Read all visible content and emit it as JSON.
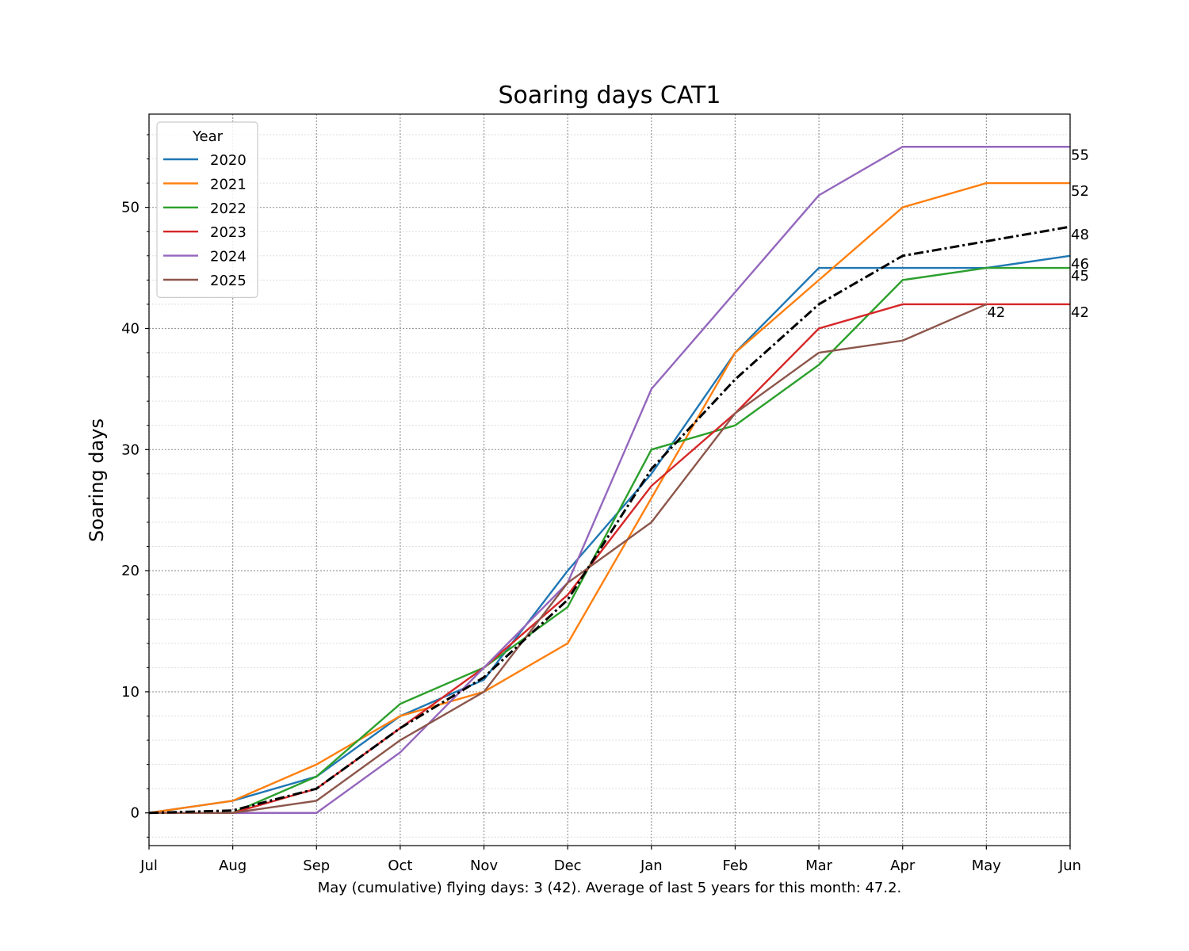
{
  "chart_data": {
    "type": "line",
    "title": "Soaring days CAT1",
    "ylabel": "Soaring days",
    "footnote": "May (cumulative) flying days:  3 (42). Average of last 5 years for this month: 47.2.",
    "legend_title": "Year",
    "legend": "upper left",
    "grid": true,
    "categories": [
      "Jul",
      "Aug",
      "Sep",
      "Oct",
      "Nov",
      "Dec",
      "Jan",
      "Feb",
      "Mar",
      "Apr",
      "May",
      "Jun"
    ],
    "ylim": [
      -2.7,
      57.7
    ],
    "yticks": [
      0,
      10,
      20,
      30,
      40,
      50
    ],
    "yminorticks": [
      -2,
      2,
      4,
      6,
      8,
      12,
      14,
      16,
      18,
      22,
      24,
      26,
      28,
      32,
      34,
      36,
      38,
      42,
      44,
      46,
      48,
      52,
      54,
      56
    ],
    "series": [
      {
        "name": "2020",
        "color": "#1f77b4",
        "values": [
          0,
          1,
          3,
          8,
          11,
          20,
          28,
          38,
          45,
          45,
          45,
          46
        ],
        "value_labels": [
          null,
          null,
          null,
          null,
          null,
          null,
          null,
          null,
          null,
          null,
          null,
          "46"
        ]
      },
      {
        "name": "2021",
        "color": "#ff7f0e",
        "values": [
          0,
          1,
          4,
          8,
          10,
          14,
          26,
          38,
          44,
          50,
          52,
          52
        ],
        "value_labels": [
          null,
          null,
          null,
          null,
          null,
          null,
          null,
          null,
          null,
          null,
          null,
          "52"
        ]
      },
      {
        "name": "2022",
        "color": "#2ca02c",
        "values": [
          0,
          0,
          3,
          9,
          12,
          17,
          30,
          32,
          37,
          44,
          45,
          45
        ],
        "value_labels": [
          null,
          null,
          null,
          null,
          null,
          null,
          null,
          null,
          null,
          null,
          null,
          "45"
        ]
      },
      {
        "name": "2023",
        "color": "#d62728",
        "values": [
          0,
          0,
          2,
          7,
          12,
          18,
          27,
          33,
          40,
          42,
          42,
          42
        ],
        "value_labels": [
          null,
          null,
          null,
          null,
          null,
          null,
          null,
          null,
          null,
          null,
          null,
          "42"
        ]
      },
      {
        "name": "2024",
        "color": "#9467bd",
        "values": [
          0,
          0,
          0,
          5,
          12,
          19,
          35,
          43,
          51,
          55,
          55,
          55
        ],
        "value_labels": [
          null,
          null,
          null,
          null,
          null,
          null,
          null,
          null,
          null,
          null,
          null,
          "55"
        ]
      },
      {
        "name": "2025",
        "color": "#8c564b",
        "values": [
          0,
          0,
          1,
          6,
          10,
          19,
          24,
          33,
          38,
          39,
          42,
          null
        ],
        "value_labels": [
          null,
          null,
          null,
          null,
          null,
          null,
          null,
          null,
          null,
          null,
          "42",
          null
        ]
      },
      {
        "color": "#000000",
        "dash": "dashdot",
        "values": [
          0,
          0.2,
          2,
          7,
          11.2,
          17.6,
          28.4,
          35.8,
          42,
          46,
          47.2,
          48.4
        ],
        "value_labels": [
          null,
          null,
          null,
          null,
          null,
          null,
          null,
          null,
          null,
          null,
          null,
          "48"
        ]
      }
    ]
  }
}
